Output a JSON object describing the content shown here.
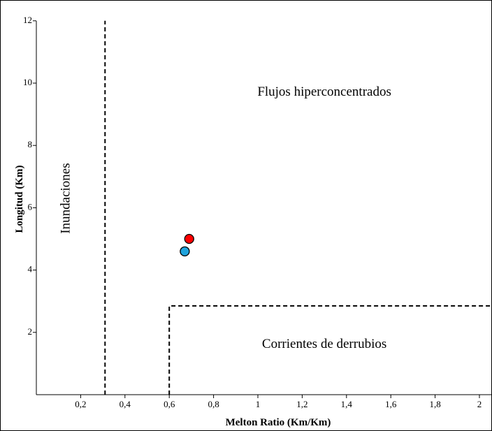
{
  "chart_data": {
    "type": "scatter",
    "title": "",
    "xlabel": "Melton Ratio (Km/Km)",
    "ylabel": "Longitud (Km)",
    "xlim": [
      0,
      2
    ],
    "ylim": [
      0,
      12
    ],
    "x_ticks": [
      {
        "value": 0.2,
        "label": "0,2"
      },
      {
        "value": 0.4,
        "label": "0,4"
      },
      {
        "value": 0.6,
        "label": "0,6"
      },
      {
        "value": 0.8,
        "label": "0,8"
      },
      {
        "value": 1.0,
        "label": "1"
      },
      {
        "value": 1.2,
        "label": "1,2"
      },
      {
        "value": 1.4,
        "label": "1,4"
      },
      {
        "value": 1.6,
        "label": "1,6"
      },
      {
        "value": 1.8,
        "label": "1,8"
      },
      {
        "value": 2.0,
        "label": "2"
      }
    ],
    "y_ticks": [
      {
        "value": 2,
        "label": "2"
      },
      {
        "value": 4,
        "label": "4"
      },
      {
        "value": 6,
        "label": "6"
      },
      {
        "value": 8,
        "label": "8"
      },
      {
        "value": 10,
        "label": "10"
      },
      {
        "value": 12,
        "label": "12"
      }
    ],
    "points": [
      {
        "x": 0.69,
        "y": 5.0,
        "color": "#ff0000"
      },
      {
        "x": 0.67,
        "y": 4.6,
        "color": "#1fa3dc"
      }
    ],
    "boundaries": [
      {
        "points": [
          [
            0.31,
            0
          ],
          [
            0.31,
            12
          ]
        ]
      },
      {
        "points": [
          [
            0.6,
            0
          ],
          [
            0.6,
            2.85
          ],
          [
            2.05,
            2.85
          ]
        ]
      }
    ],
    "regions": [
      {
        "label": "Inundaciones",
        "x": 0.15,
        "y": 6.3,
        "orientation": "vertical"
      },
      {
        "label": "Flujos hiperconcentrados",
        "x": 1.3,
        "y": 9.6,
        "orientation": "horizontal"
      },
      {
        "label": "Corrientes de derrubios",
        "x": 1.3,
        "y": 1.5,
        "orientation": "horizontal"
      }
    ],
    "grid": false,
    "legend": "none"
  }
}
